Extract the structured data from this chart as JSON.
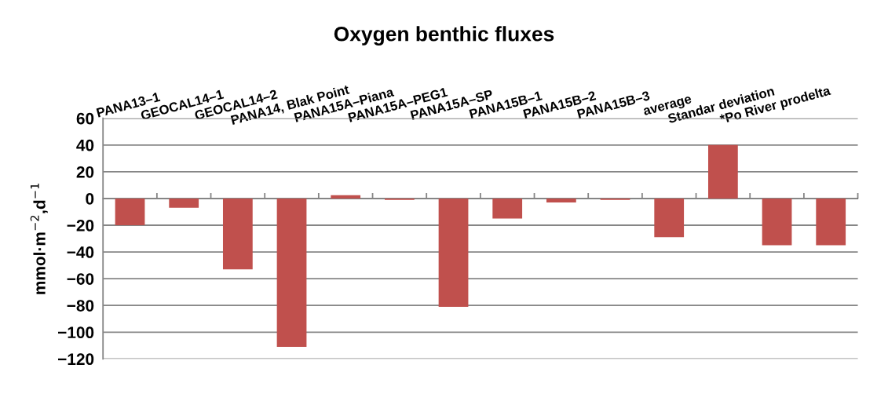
{
  "chart_data": {
    "type": "bar",
    "title": "Oxygen benthic fluxes",
    "ylabel": "mmol·m$^{−2}$,d$^{−1}$",
    "categories": [
      "PANA13–1",
      "GEOCAL14–1",
      "GEOCAL14–2",
      "PANA14, Blak Point",
      "PANA15A–Piana",
      "PANA15A–PEG1",
      "PANA15A–SP",
      "PANA15B–1",
      "PANA15B–2",
      "PANA15B–3",
      "average",
      "Standar deviation",
      "*Po River prodelta",
      null
    ],
    "values": [
      -20,
      -7,
      -53,
      -111,
      2.5,
      -1,
      -81,
      -15,
      -3,
      -1,
      -29,
      40,
      -35,
      -35
    ],
    "color": "#c0504d",
    "ylim": [
      -120,
      60
    ],
    "yticks": [
      -120,
      -100,
      -80,
      -60,
      -40,
      -20,
      0,
      20,
      40,
      60
    ],
    "grid": "y",
    "legend": false
  }
}
